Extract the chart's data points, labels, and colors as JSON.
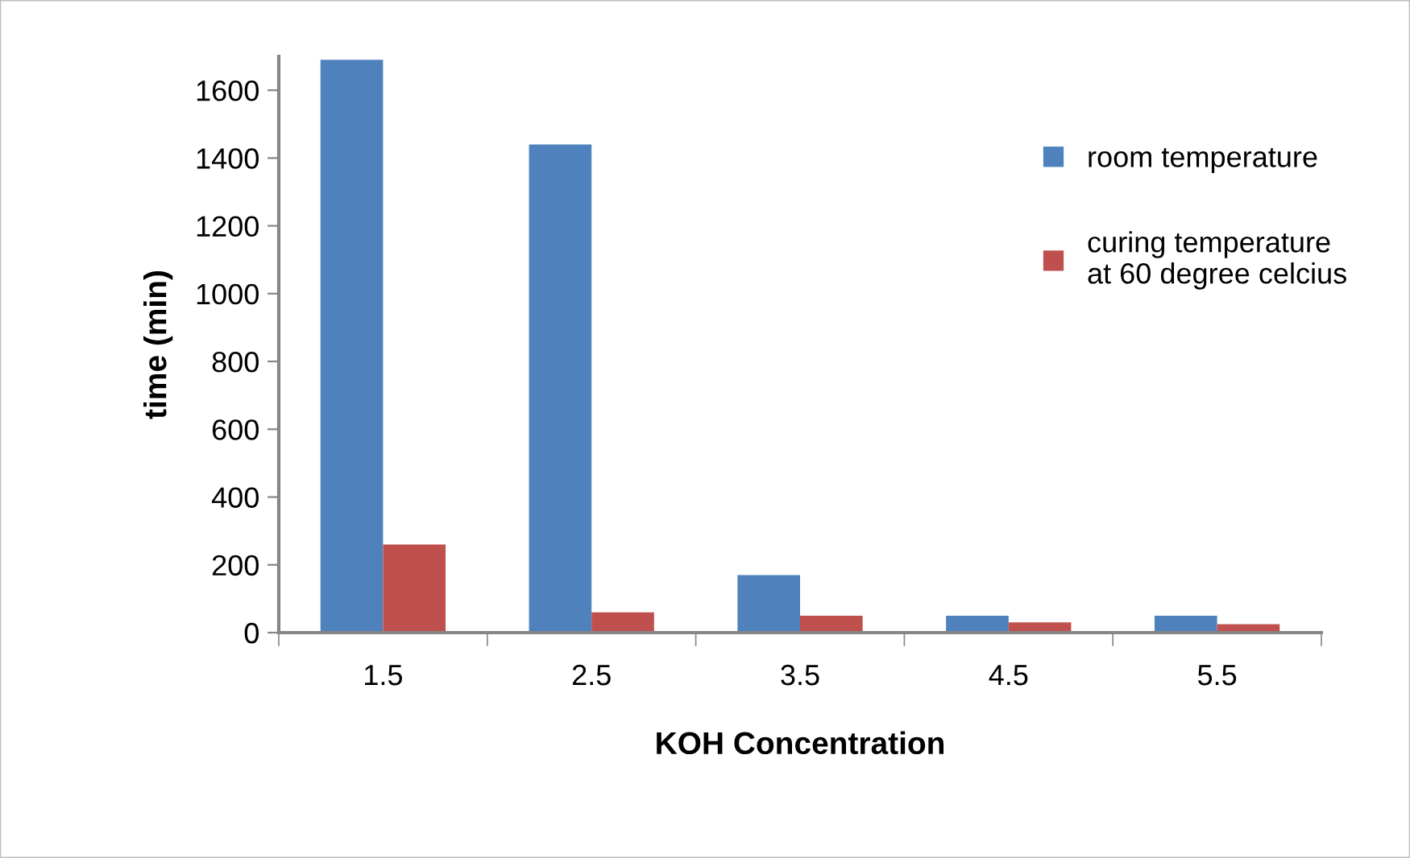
{
  "chart_data": {
    "type": "bar",
    "xlabel": "KOH Concentration",
    "ylabel": "time (min)",
    "categories": [
      "1.5",
      "2.5",
      "3.5",
      "4.5",
      "5.5"
    ],
    "series": [
      {
        "name": "room temperature",
        "color": "#4f81bd",
        "values": [
          1690,
          1440,
          170,
          50,
          50
        ]
      },
      {
        "name": "curing temperature\nat 60 degree celcius",
        "color": "#c0504d",
        "values": [
          260,
          60,
          50,
          30,
          25
        ]
      }
    ],
    "ylim": [
      0,
      1700
    ],
    "yticks": [
      0,
      200,
      400,
      600,
      800,
      1000,
      1200,
      1400,
      1600
    ],
    "grid": false,
    "legend": "right"
  }
}
